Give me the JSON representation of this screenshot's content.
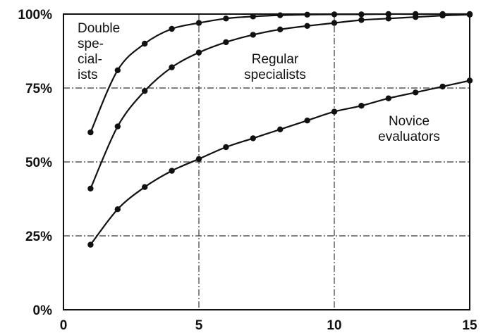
{
  "chart_data": {
    "type": "line",
    "title": "",
    "xlabel": "",
    "ylabel": "",
    "xlim": [
      0,
      15
    ],
    "ylim": [
      0,
      100
    ],
    "x_ticks": [
      0,
      5,
      10,
      15
    ],
    "x_tick_labels": [
      "0",
      "5",
      "10",
      "15"
    ],
    "y_ticks": [
      0,
      25,
      50,
      75,
      100
    ],
    "y_tick_labels": [
      "0%",
      "25%",
      "50%",
      "75%",
      "100%"
    ],
    "grid": true,
    "legend": "none",
    "x": [
      1,
      2,
      3,
      4,
      5,
      6,
      7,
      8,
      9,
      10,
      11,
      12,
      13,
      14,
      15
    ],
    "series": [
      {
        "name": "Double specialists",
        "label_lines": [
          "Double",
          "spe-",
          "cial-",
          "ists"
        ],
        "values": [
          60,
          81,
          90,
          95,
          97,
          98.5,
          99.2,
          99.6,
          99.8,
          99.9,
          99.9,
          100,
          100,
          100,
          100
        ]
      },
      {
        "name": "Regular specialists",
        "label_lines": [
          "Regular",
          "specialists"
        ],
        "values": [
          41,
          62,
          74,
          82,
          87,
          90.5,
          93,
          94.8,
          96,
          97,
          98,
          98.5,
          99,
          99.5,
          99.8
        ]
      },
      {
        "name": "Novice evaluators",
        "label_lines": [
          "Novice",
          "evaluators"
        ],
        "values": [
          22,
          34,
          41.5,
          47,
          51,
          55,
          58,
          61,
          64,
          67,
          69,
          71.5,
          73.5,
          75.5,
          77.5
        ]
      }
    ]
  }
}
